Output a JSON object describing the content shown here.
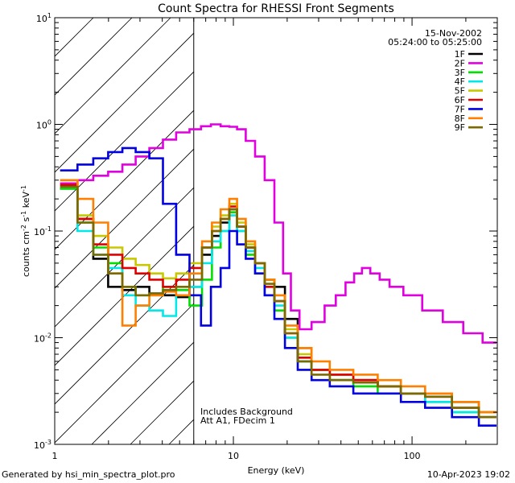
{
  "chart_data": {
    "type": "line",
    "title": "Count Spectra for RHESSI Front Segments",
    "xlabel": "Energy (keV)",
    "ylabel_main": "counts cm",
    "ylabel_exp1": "-2",
    "ylabel_s": " s",
    "ylabel_exp2": "-1",
    "ylabel_kev": " keV",
    "ylabel_exp3": "-1",
    "x_scale": "log",
    "y_scale": "log",
    "xlim": [
      1,
      300
    ],
    "ylim": [
      0.001,
      10
    ],
    "x_ticks": [
      {
        "value": 1,
        "label": "1"
      },
      {
        "value": 10,
        "label": "10"
      },
      {
        "value": 100,
        "label": "100"
      }
    ],
    "y_ticks": [
      {
        "value": 10,
        "base": "10",
        "exp": "1"
      },
      {
        "value": 1,
        "base": "10",
        "exp": "0"
      },
      {
        "value": 0.1,
        "base": "10",
        "exp": "-1"
      },
      {
        "value": 0.01,
        "base": "10",
        "exp": "-2"
      },
      {
        "value": 0.001,
        "base": "10",
        "exp": "-3"
      }
    ],
    "hatch_region_keV": [
      1,
      6
    ],
    "date": "15-Nov-2002",
    "time_range": "05:24:00 to 05:25:00",
    "annotation_1": "Includes Background",
    "annotation_2": "Att A1, FDecim 1",
    "legend": [
      {
        "name": "1F",
        "color": "#000000"
      },
      {
        "name": "2F",
        "color": "#e000e0"
      },
      {
        "name": "3F",
        "color": "#00e000"
      },
      {
        "name": "4F",
        "color": "#00e8e8"
      },
      {
        "name": "5F",
        "color": "#c8c800"
      },
      {
        "name": "6F",
        "color": "#e00000"
      },
      {
        "name": "7F",
        "color": "#0000e0"
      },
      {
        "name": "8F",
        "color": "#ff8000"
      },
      {
        "name": "9F",
        "color": "#7a6a00"
      }
    ],
    "series": [
      {
        "name": "1F",
        "color": "#000000",
        "x": [
          1.2,
          1.5,
          1.8,
          2.2,
          2.6,
          3.1,
          3.7,
          4.4,
          5.2,
          6.2,
          7.2,
          8.0,
          9.0,
          10.0,
          11.0,
          12.5,
          14.0,
          16.0,
          18.0,
          21.0,
          25.0,
          30.0,
          40.0,
          55.0,
          75.0,
          100.0,
          140.0,
          200.0,
          280.0
        ],
        "y": [
          0.25,
          0.13,
          0.055,
          0.03,
          0.028,
          0.03,
          0.026,
          0.025,
          0.024,
          0.03,
          0.06,
          0.09,
          0.12,
          0.16,
          0.11,
          0.07,
          0.05,
          0.035,
          0.03,
          0.015,
          0.008,
          0.005,
          0.004,
          0.004,
          0.0035,
          0.003,
          0.003,
          0.0025,
          0.002
        ]
      },
      {
        "name": "2F",
        "color": "#e000e0",
        "x": [
          1.2,
          1.5,
          1.8,
          2.2,
          2.6,
          3.1,
          3.7,
          4.4,
          5.2,
          6.2,
          7.0,
          8.0,
          9.0,
          10.0,
          11.0,
          12.5,
          14.0,
          16.0,
          18.0,
          20.0,
          22.0,
          25.0,
          30.0,
          35.0,
          40.0,
          45.0,
          50.0,
          55.0,
          62.0,
          70.0,
          80.0,
          100.0,
          130.0,
          170.0,
          220.0,
          280.0
        ],
        "y": [
          0.28,
          0.3,
          0.33,
          0.36,
          0.42,
          0.5,
          0.6,
          0.72,
          0.84,
          0.9,
          0.96,
          1.0,
          0.96,
          0.95,
          0.9,
          0.7,
          0.5,
          0.3,
          0.12,
          0.04,
          0.018,
          0.012,
          0.014,
          0.02,
          0.025,
          0.033,
          0.04,
          0.045,
          0.04,
          0.035,
          0.03,
          0.025,
          0.018,
          0.014,
          0.011,
          0.009
        ]
      },
      {
        "name": "3F",
        "color": "#00e000",
        "x": [
          1.2,
          1.5,
          1.8,
          2.2,
          2.6,
          3.1,
          3.7,
          4.4,
          5.2,
          6.2,
          7.2,
          8.0,
          9.0,
          10.0,
          11.0,
          12.5,
          14.0,
          16.0,
          18.0,
          21.0,
          25.0,
          30.0,
          40.0,
          55.0,
          75.0,
          100.0,
          140.0,
          200.0,
          280.0
        ],
        "y": [
          0.25,
          0.12,
          0.07,
          0.05,
          0.03,
          0.025,
          0.025,
          0.03,
          0.028,
          0.02,
          0.035,
          0.07,
          0.1,
          0.15,
          0.1,
          0.06,
          0.04,
          0.025,
          0.018,
          0.01,
          0.006,
          0.005,
          0.004,
          0.0035,
          0.003,
          0.003,
          0.0025,
          0.002,
          0.0018
        ]
      },
      {
        "name": "4F",
        "color": "#00e8e8",
        "x": [
          1.2,
          1.5,
          1.8,
          2.2,
          2.6,
          3.1,
          3.7,
          4.4,
          5.2,
          6.2,
          7.2,
          8.0,
          9.0,
          10.0,
          11.0,
          12.5,
          14.0,
          16.0,
          18.0,
          21.0,
          25.0,
          30.0,
          40.0,
          55.0,
          75.0,
          100.0,
          140.0,
          200.0,
          280.0
        ],
        "y": [
          0.26,
          0.1,
          0.06,
          0.045,
          0.025,
          0.02,
          0.018,
          0.016,
          0.025,
          0.03,
          0.05,
          0.08,
          0.1,
          0.14,
          0.1,
          0.065,
          0.045,
          0.03,
          0.02,
          0.01,
          0.006,
          0.005,
          0.0045,
          0.004,
          0.0035,
          0.003,
          0.0025,
          0.002,
          0.0018
        ]
      },
      {
        "name": "5F",
        "color": "#c8c800",
        "x": [
          1.2,
          1.5,
          1.8,
          2.2,
          2.6,
          3.1,
          3.7,
          4.4,
          5.2,
          6.2,
          7.2,
          8.0,
          9.0,
          10.0,
          11.0,
          12.5,
          14.0,
          16.0,
          18.0,
          21.0,
          25.0,
          30.0,
          40.0,
          55.0,
          75.0,
          100.0,
          140.0,
          200.0,
          280.0
        ],
        "y": [
          0.3,
          0.14,
          0.09,
          0.07,
          0.055,
          0.048,
          0.04,
          0.036,
          0.04,
          0.05,
          0.07,
          0.11,
          0.14,
          0.18,
          0.12,
          0.075,
          0.05,
          0.035,
          0.025,
          0.012,
          0.007,
          0.005,
          0.0045,
          0.004,
          0.0035,
          0.003,
          0.003,
          0.0025,
          0.002
        ]
      },
      {
        "name": "6F",
        "color": "#e00000",
        "x": [
          1.2,
          1.5,
          1.8,
          2.2,
          2.6,
          3.1,
          3.7,
          4.4,
          5.2,
          6.2,
          7.2,
          8.0,
          9.0,
          10.0,
          11.0,
          12.5,
          14.0,
          16.0,
          18.0,
          21.0,
          25.0,
          30.0,
          40.0,
          55.0,
          75.0,
          100.0,
          140.0,
          200.0,
          280.0
        ],
        "y": [
          0.27,
          0.13,
          0.075,
          0.06,
          0.045,
          0.04,
          0.035,
          0.03,
          0.035,
          0.045,
          0.07,
          0.1,
          0.13,
          0.17,
          0.11,
          0.07,
          0.05,
          0.03,
          0.022,
          0.011,
          0.0065,
          0.005,
          0.0045,
          0.004,
          0.0035,
          0.003,
          0.0028,
          0.0022,
          0.0018
        ]
      },
      {
        "name": "7F",
        "color": "#0000e0",
        "x": [
          1.2,
          1.5,
          1.8,
          2.2,
          2.6,
          3.1,
          3.7,
          4.4,
          5.2,
          6.2,
          7.0,
          8.0,
          9.0,
          10.0,
          11.0,
          12.5,
          14.0,
          16.0,
          18.0,
          21.0,
          25.0,
          30.0,
          40.0,
          55.0,
          75.0,
          100.0,
          140.0,
          200.0,
          280.0
        ],
        "y": [
          0.37,
          0.42,
          0.48,
          0.55,
          0.6,
          0.55,
          0.48,
          0.18,
          0.06,
          0.025,
          0.013,
          0.03,
          0.045,
          0.1,
          0.075,
          0.055,
          0.04,
          0.025,
          0.015,
          0.008,
          0.005,
          0.004,
          0.0035,
          0.003,
          0.003,
          0.0025,
          0.0022,
          0.0018,
          0.0015
        ]
      },
      {
        "name": "8F",
        "color": "#ff8000",
        "x": [
          1.2,
          1.5,
          1.8,
          2.2,
          2.6,
          3.1,
          3.7,
          4.4,
          5.2,
          6.2,
          7.2,
          8.0,
          9.0,
          10.0,
          11.0,
          12.5,
          14.0,
          16.0,
          18.0,
          21.0,
          25.0,
          30.0,
          40.0,
          55.0,
          75.0,
          100.0,
          140.0,
          200.0,
          280.0
        ],
        "y": [
          0.3,
          0.2,
          0.12,
          0.04,
          0.013,
          0.02,
          0.025,
          0.027,
          0.025,
          0.04,
          0.08,
          0.12,
          0.16,
          0.2,
          0.13,
          0.08,
          0.05,
          0.035,
          0.025,
          0.013,
          0.008,
          0.006,
          0.005,
          0.0045,
          0.004,
          0.0035,
          0.003,
          0.0025,
          0.002
        ]
      },
      {
        "name": "9F",
        "color": "#7a6a00",
        "x": [
          1.2,
          1.5,
          1.8,
          2.2,
          2.6,
          3.1,
          3.7,
          4.4,
          5.2,
          6.2,
          7.2,
          8.0,
          9.0,
          10.0,
          11.0,
          12.5,
          14.0,
          16.0,
          18.0,
          21.0,
          25.0,
          30.0,
          40.0,
          55.0,
          75.0,
          100.0,
          140.0,
          200.0,
          280.0
        ],
        "y": [
          0.26,
          0.12,
          0.06,
          0.04,
          0.03,
          0.025,
          0.026,
          0.028,
          0.03,
          0.035,
          0.07,
          0.1,
          0.13,
          0.16,
          0.11,
          0.07,
          0.05,
          0.032,
          0.022,
          0.011,
          0.006,
          0.0045,
          0.004,
          0.0038,
          0.0035,
          0.003,
          0.0028,
          0.0022,
          0.0018
        ]
      }
    ]
  },
  "footer": {
    "left": "Generated by hsi_min_spectra_plot.pro",
    "right": "10-Apr-2023 19:02"
  }
}
